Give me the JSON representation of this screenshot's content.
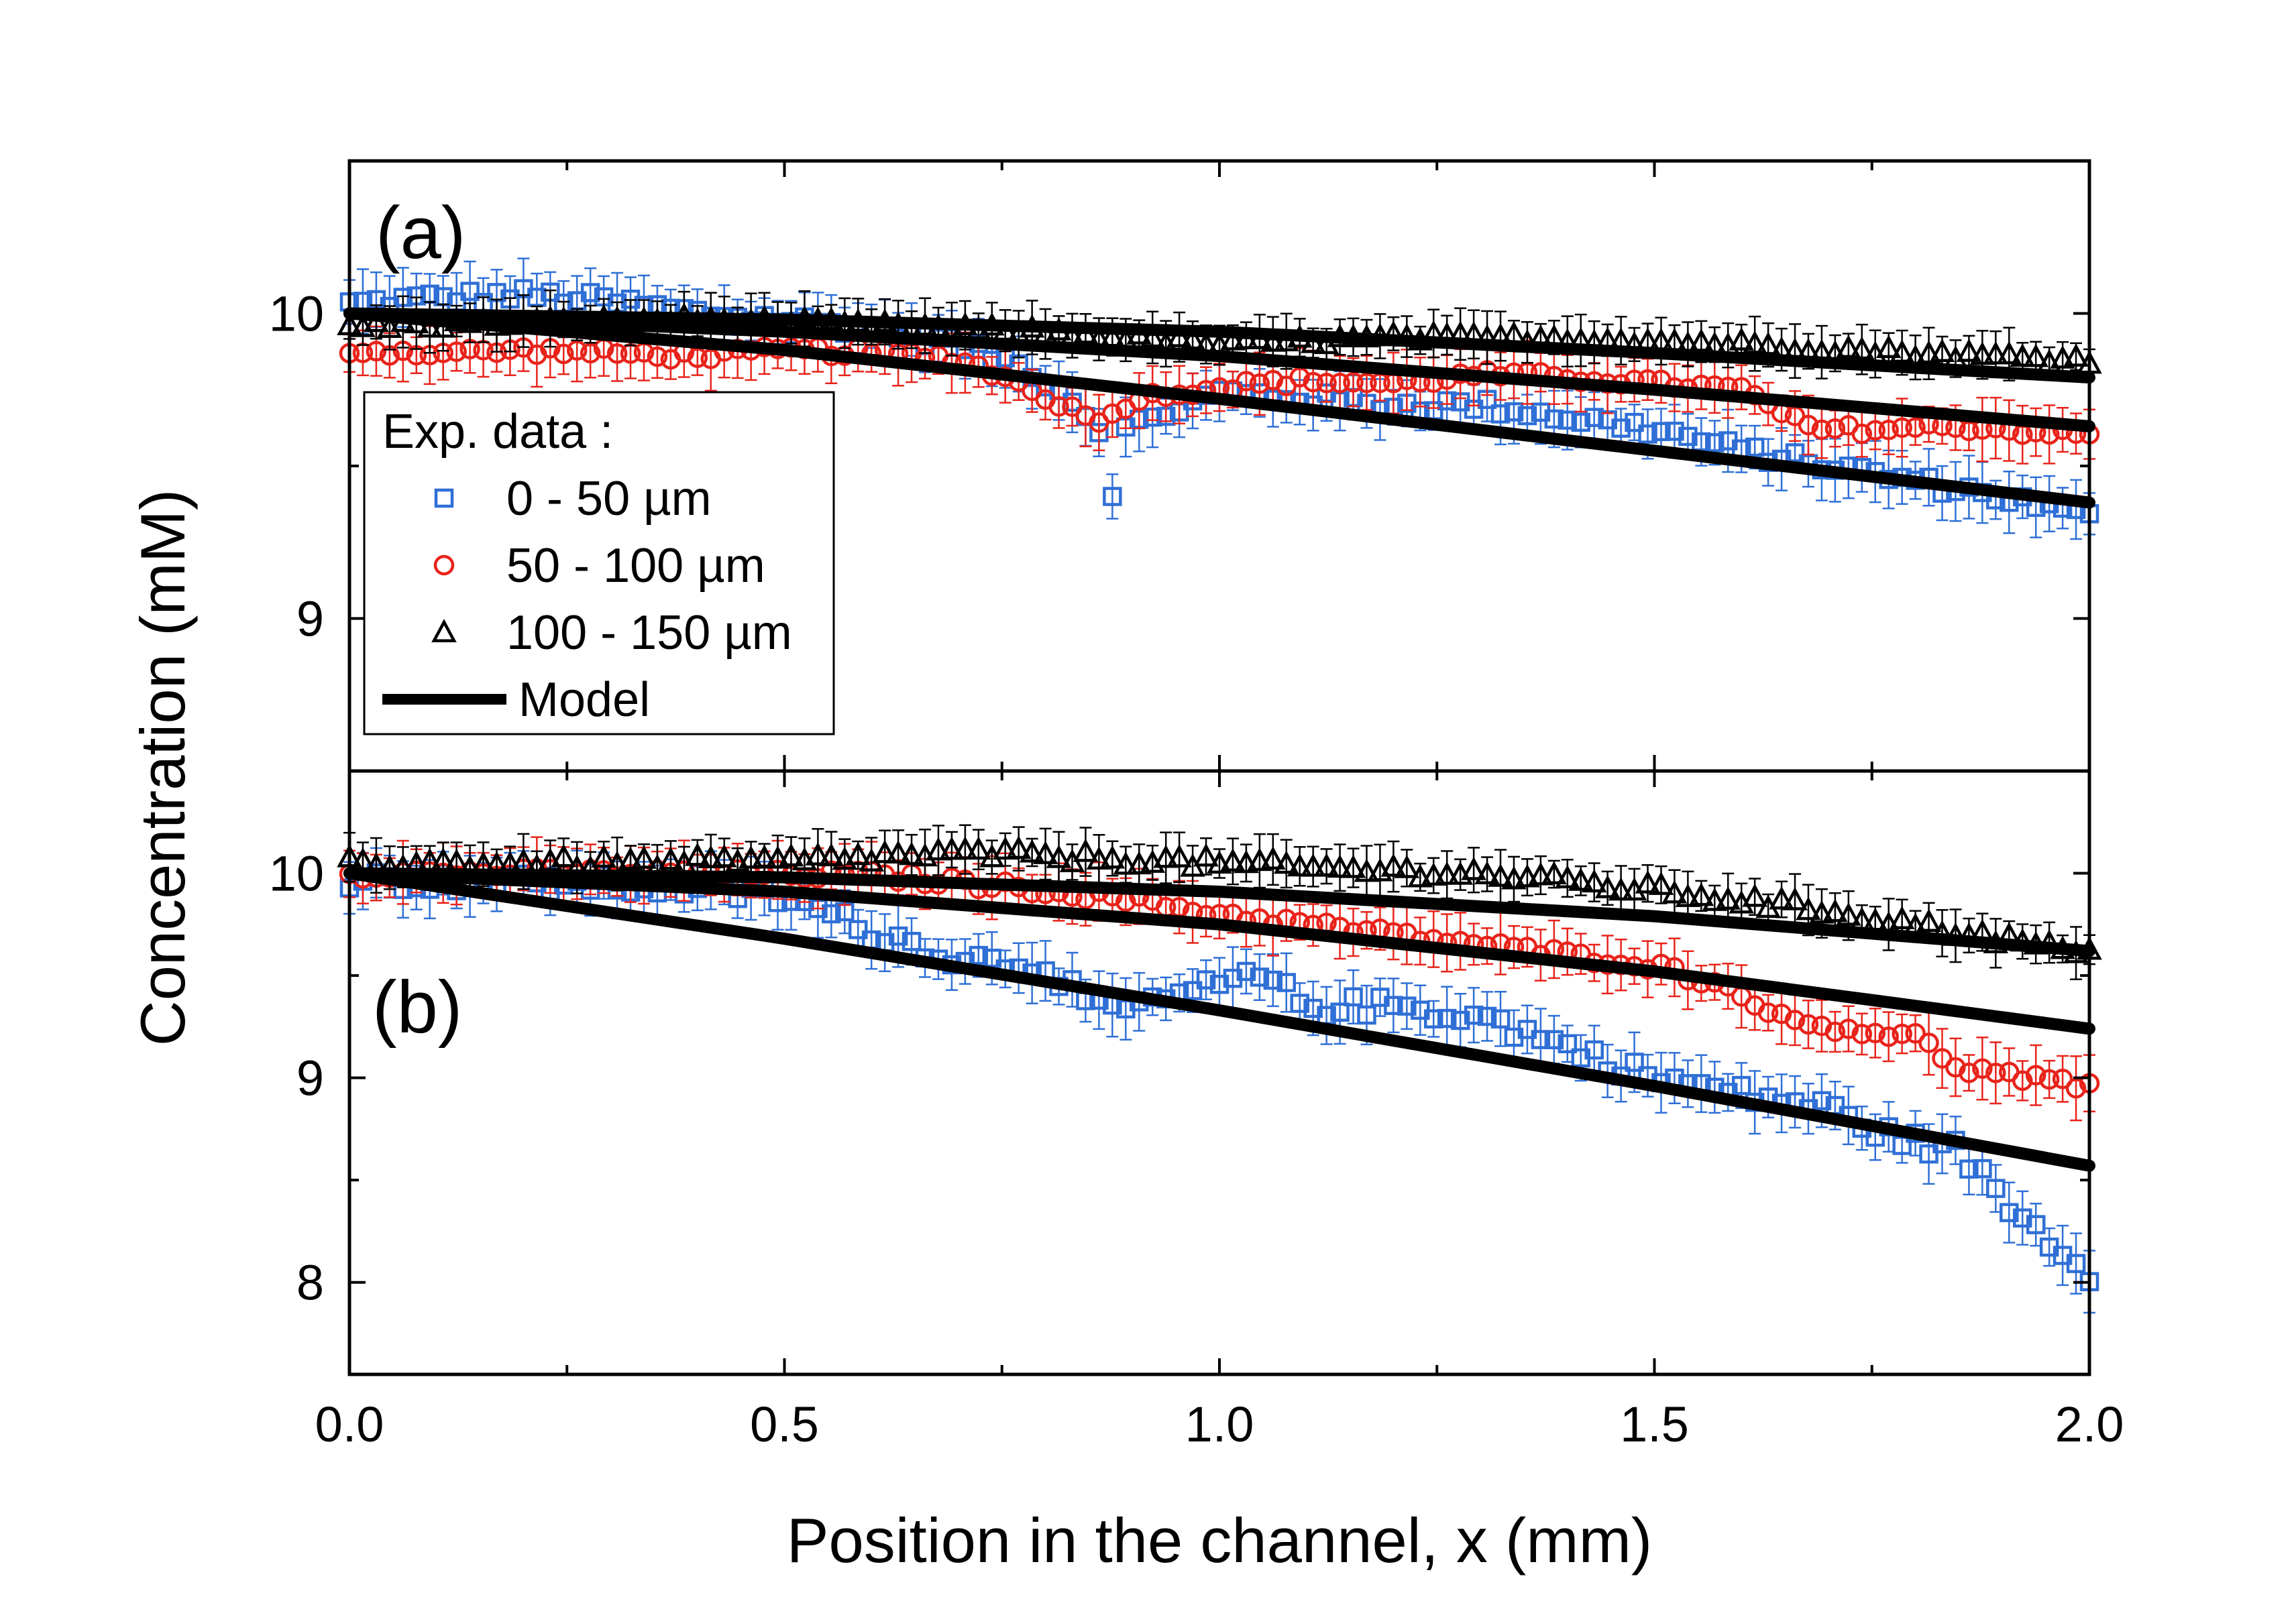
{
  "chart_data": {
    "type": "scatter",
    "xlabel": "Position in the channel, x (mm)",
    "ylabel": "Concentration (mM)",
    "xlim": [
      0.0,
      2.0
    ],
    "x_ticks": [
      "0.0",
      "0.5",
      "1.0",
      "1.5",
      "2.0"
    ],
    "legend": {
      "title": "Exp. data :",
      "placement": "lower-left of panel (a)",
      "entries": [
        {
          "series": "0 - 50 µm",
          "marker": "square",
          "color": "#2F6FD6"
        },
        {
          "series": "50 - 100 µm",
          "marker": "circle",
          "color": "#E8231A"
        },
        {
          "series": "100 - 150 µm",
          "marker": "triangle",
          "color": "#000000"
        },
        {
          "series": "Model",
          "marker": "line",
          "color": "#000000"
        }
      ]
    },
    "panels": [
      {
        "label": "(a)",
        "ylim": [
          8.5,
          10.5
        ],
        "y_ticks": [
          "9",
          "10"
        ],
        "y_tick_values": [
          9,
          10
        ],
        "model": [
          {
            "name": "0 - 50 µm",
            "points": [
              [
                0,
                10.0
              ],
              [
                0.5,
                9.88
              ],
              [
                1.0,
                9.72
              ],
              [
                1.5,
                9.55
              ],
              [
                2.0,
                9.38
              ]
            ]
          },
          {
            "name": "50 - 100 µm",
            "points": [
              [
                0,
                10.0
              ],
              [
                0.5,
                9.94
              ],
              [
                1.0,
                9.86
              ],
              [
                1.5,
                9.75
              ],
              [
                2.0,
                9.63
              ]
            ]
          },
          {
            "name": "100 - 150 µm",
            "points": [
              [
                0,
                10.0
              ],
              [
                0.5,
                9.98
              ],
              [
                1.0,
                9.94
              ],
              [
                1.5,
                9.87
              ],
              [
                2.0,
                9.79
              ]
            ]
          }
        ],
        "series": [
          {
            "name": "0 - 50 µm",
            "marker": "square",
            "color": "#2F6FD6",
            "anchors": [
              [
                0,
                10.03
              ],
              [
                0.1,
                10.05
              ],
              [
                0.2,
                10.06
              ],
              [
                0.3,
                10.04
              ],
              [
                0.4,
                10.0
              ],
              [
                0.5,
                9.98
              ],
              [
                0.6,
                9.95
              ],
              [
                0.7,
                9.9
              ],
              [
                0.78,
                9.82
              ],
              [
                0.84,
                9.7
              ],
              [
                0.87,
                9.58
              ],
              [
                0.9,
                9.63
              ],
              [
                1.0,
                9.74
              ],
              [
                1.1,
                9.72
              ],
              [
                1.2,
                9.7
              ],
              [
                1.3,
                9.7
              ],
              [
                1.4,
                9.66
              ],
              [
                1.5,
                9.62
              ],
              [
                1.6,
                9.55
              ],
              [
                1.7,
                9.5
              ],
              [
                1.8,
                9.45
              ],
              [
                1.9,
                9.4
              ],
              [
                2.0,
                9.33
              ]
            ],
            "noise": 0.025,
            "dips": [
              [
                0.87,
                9.4
              ]
            ]
          },
          {
            "name": "50 - 100 µm",
            "marker": "circle",
            "color": "#E8231A",
            "anchors": [
              [
                0,
                9.88
              ],
              [
                0.1,
                9.87
              ],
              [
                0.2,
                9.88
              ],
              [
                0.3,
                9.87
              ],
              [
                0.4,
                9.86
              ],
              [
                0.5,
                9.88
              ],
              [
                0.6,
                9.87
              ],
              [
                0.7,
                9.85
              ],
              [
                0.78,
                9.76
              ],
              [
                0.84,
                9.67
              ],
              [
                0.87,
                9.65
              ],
              [
                0.9,
                9.72
              ],
              [
                1.0,
                9.76
              ],
              [
                1.1,
                9.78
              ],
              [
                1.2,
                9.77
              ],
              [
                1.3,
                9.8
              ],
              [
                1.4,
                9.79
              ],
              [
                1.5,
                9.77
              ],
              [
                1.6,
                9.75
              ],
              [
                1.68,
                9.62
              ],
              [
                1.75,
                9.62
              ],
              [
                1.85,
                9.63
              ],
              [
                2.0,
                9.6
              ]
            ],
            "noise": 0.015,
            "dips": []
          },
          {
            "name": "100 - 150 µm",
            "marker": "triangle",
            "color": "#000000",
            "anchors": [
              [
                0,
                9.96
              ],
              [
                0.2,
                9.97
              ],
              [
                0.4,
                9.98
              ],
              [
                0.6,
                9.96
              ],
              [
                0.8,
                9.94
              ],
              [
                1.0,
                9.9
              ],
              [
                1.2,
                9.92
              ],
              [
                1.4,
                9.92
              ],
              [
                1.6,
                9.9
              ],
              [
                1.8,
                9.87
              ],
              [
                2.0,
                9.85
              ]
            ],
            "noise": 0.015,
            "dips": []
          }
        ]
      },
      {
        "label": "(b)",
        "ylim": [
          7.55,
          10.5
        ],
        "y_ticks": [
          "8",
          "9",
          "10"
        ],
        "y_tick_values": [
          8,
          9,
          10
        ],
        "model": [
          {
            "name": "0 - 50 µm",
            "points": [
              [
                0,
                10.0
              ],
              [
                0.5,
                9.68
              ],
              [
                1.0,
                9.33
              ],
              [
                1.5,
                8.96
              ],
              [
                2.0,
                8.57
              ]
            ]
          },
          {
            "name": "50 - 100 µm",
            "points": [
              [
                0,
                10.0
              ],
              [
                0.5,
                9.91
              ],
              [
                1.0,
                9.75
              ],
              [
                1.5,
                9.52
              ],
              [
                2.0,
                9.24
              ]
            ]
          },
          {
            "name": "100 - 150 µm",
            "points": [
              [
                0,
                10.0
              ],
              [
                0.5,
                9.98
              ],
              [
                1.0,
                9.91
              ],
              [
                1.5,
                9.79
              ],
              [
                2.0,
                9.62
              ]
            ]
          }
        ],
        "series": [
          {
            "name": "0 - 50 µm",
            "marker": "square",
            "color": "#2F6FD6",
            "anchors": [
              [
                0,
                9.97
              ],
              [
                0.2,
                9.95
              ],
              [
                0.4,
                9.93
              ],
              [
                0.5,
                9.88
              ],
              [
                0.6,
                9.72
              ],
              [
                0.7,
                9.58
              ],
              [
                0.8,
                9.55
              ],
              [
                0.87,
                9.3
              ],
              [
                0.95,
                9.4
              ],
              [
                1.05,
                9.5
              ],
              [
                1.1,
                9.35
              ],
              [
                1.2,
                9.35
              ],
              [
                1.3,
                9.3
              ],
              [
                1.4,
                9.15
              ],
              [
                1.5,
                9.0
              ],
              [
                1.6,
                8.92
              ],
              [
                1.7,
                8.85
              ],
              [
                1.78,
                8.7
              ],
              [
                1.85,
                8.65
              ],
              [
                1.9,
                8.4
              ],
              [
                2.0,
                8.05
              ]
            ],
            "noise": 0.05,
            "dips": []
          },
          {
            "name": "50 - 100 µm",
            "marker": "circle",
            "color": "#E8231A",
            "anchors": [
              [
                0,
                10.0
              ],
              [
                0.3,
                10.0
              ],
              [
                0.6,
                9.99
              ],
              [
                0.8,
                9.92
              ],
              [
                0.9,
                9.87
              ],
              [
                1.0,
                9.8
              ],
              [
                1.2,
                9.7
              ],
              [
                1.4,
                9.6
              ],
              [
                1.5,
                9.55
              ],
              [
                1.6,
                9.42
              ],
              [
                1.65,
                9.28
              ],
              [
                1.8,
                9.2
              ],
              [
                1.85,
                9.05
              ],
              [
                2.0,
                8.95
              ]
            ],
            "noise": 0.025,
            "dips": []
          },
          {
            "name": "100 - 150 µm",
            "marker": "triangle",
            "color": "#000000",
            "anchors": [
              [
                0,
                10.05
              ],
              [
                0.3,
                10.05
              ],
              [
                0.5,
                10.06
              ],
              [
                0.7,
                10.1
              ],
              [
                0.9,
                10.07
              ],
              [
                1.1,
                10.03
              ],
              [
                1.3,
                10.0
              ],
              [
                1.5,
                9.92
              ],
              [
                1.7,
                9.82
              ],
              [
                1.9,
                9.68
              ],
              [
                2.0,
                9.6
              ]
            ],
            "noise": 0.03,
            "dips": []
          }
        ]
      }
    ]
  }
}
